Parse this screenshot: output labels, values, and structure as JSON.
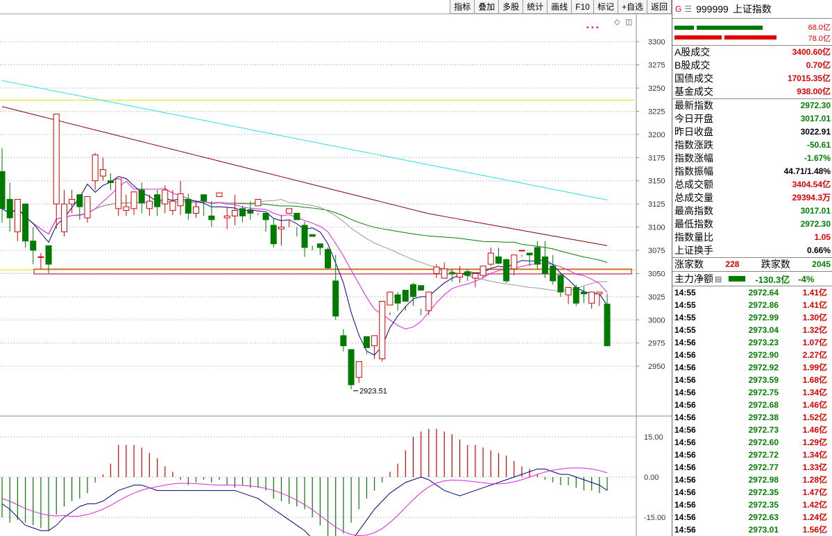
{
  "toolbar": [
    "指标",
    "叠加",
    "多股",
    "统计",
    "画线",
    "F10",
    "标记",
    "+自选",
    "返回"
  ],
  "price_axis": [
    "3300",
    "3275",
    "3250",
    "3225",
    "3200",
    "3175",
    "3150",
    "3125",
    "3100",
    "3075",
    "3050",
    "3025",
    "3000",
    "2975",
    "2950"
  ],
  "low_marker": "2923.51",
  "macd_axis": [
    "15.00",
    "0.00",
    "-15.00"
  ],
  "header": {
    "g": "G",
    "menu": "☰",
    "code": "999999",
    "name": "上证指数"
  },
  "bars": {
    "top_value": "68.0亿",
    "bottom_value": "78.0亿"
  },
  "market": [
    {
      "k": "A股成交",
      "v": "3400.60亿",
      "c": "red"
    },
    {
      "k": "B股成交",
      "v": "0.70亿",
      "c": "red"
    },
    {
      "k": "国债成交",
      "v": "17015.35亿",
      "c": "red"
    },
    {
      "k": "基金成交",
      "v": "938.00亿",
      "c": "red"
    }
  ],
  "quote": [
    {
      "k": "最新指数",
      "v": "2972.30",
      "c": "green"
    },
    {
      "k": "今日开盘",
      "v": "3017.01",
      "c": "green"
    },
    {
      "k": "昨日收盘",
      "v": "3022.91",
      "c": "blk"
    },
    {
      "k": "指数涨跌",
      "v": "-50.61",
      "c": "green"
    },
    {
      "k": "指数涨幅",
      "v": "-1.67%",
      "c": "green"
    },
    {
      "k": "指数振幅",
      "v": "44.71/1.48%",
      "c": "blk"
    },
    {
      "k": "总成交额",
      "v": "3404.54亿",
      "c": "red"
    },
    {
      "k": "总成交量",
      "v": "29394.3万",
      "c": "red"
    },
    {
      "k": "最高指数",
      "v": "3017.01",
      "c": "green"
    },
    {
      "k": "最低指数",
      "v": "2972.30",
      "c": "green"
    },
    {
      "k": "指数量比",
      "v": "1.05",
      "c": "red"
    },
    {
      "k": "上证换手",
      "v": "0.66%",
      "c": "blk"
    }
  ],
  "updown": {
    "up_label": "涨家数",
    "up": "228",
    "down_label": "跌家数",
    "down": "2045"
  },
  "flow": {
    "label": "主力净额",
    "value": "-130.3亿",
    "pct": "-4%"
  },
  "ticks": [
    [
      "14:55",
      "2972.64",
      "1.41亿"
    ],
    [
      "14:55",
      "2972.86",
      "1.41亿"
    ],
    [
      "14:55",
      "2972.99",
      "1.30亿"
    ],
    [
      "14:55",
      "2973.04",
      "1.32亿"
    ],
    [
      "14:56",
      "2973.23",
      "1.07亿"
    ],
    [
      "14:56",
      "2972.90",
      "2.27亿"
    ],
    [
      "14:56",
      "2972.92",
      "1.99亿"
    ],
    [
      "14:56",
      "2973.59",
      "1.68亿"
    ],
    [
      "14:56",
      "2972.75",
      "1.34亿"
    ],
    [
      "14:56",
      "2972.68",
      "1.46亿"
    ],
    [
      "14:56",
      "2972.38",
      "1.52亿"
    ],
    [
      "14:56",
      "2972.73",
      "1.46亿"
    ],
    [
      "14:56",
      "2972.60",
      "1.29亿"
    ],
    [
      "14:56",
      "2972.72",
      "1.34亿"
    ],
    [
      "14:56",
      "2972.77",
      "1.33亿"
    ],
    [
      "14:56",
      "2972.98",
      "1.28亿"
    ],
    [
      "14:56",
      "2972.35",
      "1.47亿"
    ],
    [
      "14:56",
      "2972.35",
      "1.42亿"
    ],
    [
      "14:56",
      "2972.63",
      "1.24亿"
    ],
    [
      "14:56",
      "2973.01",
      "1.56亿"
    ]
  ],
  "chart_data": [
    {
      "type": "candlestick",
      "y_range": [
        2900,
        3330
      ],
      "levels": [
        3237,
        3054
      ],
      "candles": [
        [
          3160,
          3185,
          3120,
          3105
        ],
        [
          3130,
          3148,
          3110,
          3095
        ],
        [
          3095,
          3125,
          3130,
          3085
        ],
        [
          3125,
          3125,
          3085,
          3078
        ],
        [
          3085,
          3100,
          3075,
          3060
        ],
        [
          3068,
          3072,
          3068,
          3055
        ],
        [
          3080,
          3078,
          3060,
          3050
        ],
        [
          3125,
          3222,
          3222,
          3098
        ],
        [
          3095,
          3140,
          3125,
          3090
        ],
        [
          3125,
          3140,
          3130,
          3115
        ],
        [
          3135,
          3130,
          3122,
          3108
        ],
        [
          3110,
          3112,
          3133,
          3105
        ],
        [
          3150,
          3180,
          3178,
          3140
        ],
        [
          3155,
          3175,
          3162,
          3150
        ],
        [
          3150,
          3158,
          3148,
          3140
        ],
        [
          3120,
          3150,
          3152,
          3112
        ],
        [
          3118,
          3135,
          3122,
          3112
        ],
        [
          3120,
          3130,
          3138,
          3113
        ],
        [
          3140,
          3148,
          3126,
          3115
        ],
        [
          3120,
          3135,
          3128,
          3112
        ],
        [
          3135,
          3140,
          3122,
          3112
        ],
        [
          3125,
          3145,
          3140,
          3115
        ],
        [
          3118,
          3140,
          3128,
          3113
        ],
        [
          3123,
          3150,
          3136,
          3113
        ],
        [
          3130,
          3136,
          3115,
          3108
        ],
        [
          3115,
          3128,
          3122,
          3110
        ],
        [
          3135,
          3128,
          3128,
          3112
        ],
        [
          3112,
          3128,
          3108,
          3100
        ],
        [
          3133,
          3108,
          3137,
          3108
        ],
        [
          3110,
          3122,
          3112,
          3098
        ],
        [
          3112,
          3135,
          3118,
          3102
        ],
        [
          3120,
          3123,
          3112,
          3105
        ],
        [
          3118,
          3128,
          3115,
          3108
        ],
        [
          3123,
          3115,
          3130,
          3113
        ],
        [
          3115,
          3110,
          3108,
          3095
        ],
        [
          3102,
          3110,
          3082,
          3078
        ],
        [
          3098,
          3113,
          3100,
          3080
        ],
        [
          3115,
          3108,
          3120,
          3100
        ],
        [
          3115,
          3100,
          3108,
          3090
        ],
        [
          3102,
          3106,
          3078,
          3068
        ],
        [
          3092,
          3080,
          3090,
          3075
        ],
        [
          3082,
          3082,
          3078,
          3070
        ],
        [
          3076,
          3078,
          3056,
          3055
        ],
        [
          3042,
          3070,
          3004,
          3000
        ],
        [
          2983,
          2990,
          2972,
          2966
        ],
        [
          2968,
          2955,
          2930,
          2925
        ],
        [
          2938,
          2940,
          2955,
          2932
        ],
        [
          2982,
          2963,
          2970,
          2965
        ],
        [
          2972,
          2972,
          2983,
          2958
        ],
        [
          2958,
          2985,
          3020,
          2955
        ],
        [
          3016,
          3008,
          3030,
          3005
        ],
        [
          3027,
          3030,
          3018,
          3010
        ],
        [
          3032,
          3015,
          3020,
          3010
        ],
        [
          3038,
          3040,
          3025,
          3015
        ],
        [
          3037,
          3012,
          3032,
          3005
        ],
        [
          3010,
          3012,
          3030,
          3005
        ],
        [
          3050,
          3060,
          3057,
          3045
        ],
        [
          3045,
          3062,
          3055,
          3045
        ],
        [
          3051,
          3055,
          3050,
          3041
        ],
        [
          3046,
          3058,
          3050,
          3040
        ],
        [
          3052,
          3055,
          3048,
          3042
        ],
        [
          3045,
          3050,
          3050,
          3035
        ],
        [
          3048,
          3058,
          3058,
          3045
        ],
        [
          3060,
          3078,
          3072,
          3058
        ],
        [
          3068,
          3078,
          3061,
          3060
        ],
        [
          3065,
          3066,
          3042,
          3040
        ],
        [
          3055,
          3068,
          3070,
          3048
        ],
        [
          3075,
          3070,
          3075,
          3068
        ],
        [
          3072,
          3072,
          3070,
          3058
        ],
        [
          3078,
          3085,
          3060,
          3055
        ],
        [
          3068,
          3085,
          3050,
          3045
        ],
        [
          3058,
          3070,
          3042,
          3038
        ],
        [
          3048,
          3050,
          3030,
          3025
        ],
        [
          3027,
          3030,
          3035,
          3017
        ],
        [
          3035,
          3038,
          3018,
          3015
        ],
        [
          3030,
          3036,
          3028,
          3018
        ],
        [
          3018,
          3020,
          3030,
          3012
        ],
        [
          3028,
          3028,
          3030,
          3015
        ],
        [
          3017,
          3028,
          2972,
          2972
        ]
      ]
    },
    {
      "type": "macd",
      "y_range": [
        -22,
        22
      ],
      "hist": [
        -15,
        -17,
        -16,
        -17,
        -18,
        -19,
        -20,
        -14,
        -11,
        -9,
        -8,
        -6,
        -2,
        1,
        5,
        12,
        12,
        12,
        11,
        9,
        7,
        4,
        2,
        -1,
        -3,
        -2,
        -1,
        -2,
        -1,
        -3,
        -4,
        -3,
        -4,
        -4,
        -5,
        -8,
        -9,
        -10,
        -11,
        -12,
        -15,
        -18,
        -22,
        -24,
        -21,
        -17,
        -12,
        -8,
        -5,
        -2,
        2,
        5,
        10,
        15,
        17,
        18,
        18,
        17,
        16,
        14,
        12,
        12,
        11,
        10,
        9,
        8,
        6,
        4,
        3,
        1,
        -1,
        -2,
        -3,
        -3,
        -4,
        -5,
        -5,
        -6,
        -5
      ]
    }
  ]
}
